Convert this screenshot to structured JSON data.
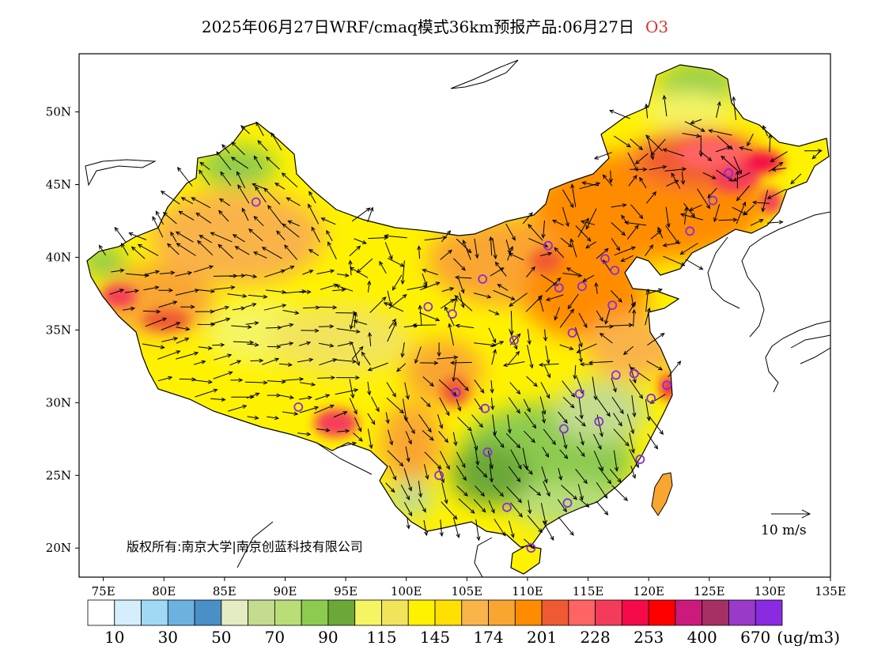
{
  "title": {
    "text": "2025年06月27日WRF/cmaq模式36km预报产品:06月27日",
    "pollutant": "O3"
  },
  "map": {
    "lon_range": [
      73,
      135
    ],
    "lat_range": [
      18,
      54
    ],
    "lon_ticks": [
      "75E",
      "80E",
      "85E",
      "90E",
      "95E",
      "100E",
      "105E",
      "110E",
      "115E",
      "120E",
      "125E",
      "130E",
      "135E"
    ],
    "lat_ticks": [
      "20N",
      "25N",
      "30N",
      "35N",
      "40N",
      "45N",
      "50N"
    ],
    "copyright": "版权所有:南京大学|南京创蓝科技有限公司",
    "wind_scale_label": "10 m/s"
  },
  "legend": {
    "colors": [
      "#ffffff",
      "#d4eefb",
      "#9fd9f6",
      "#6cb2e0",
      "#4a8fc6",
      "#e3ecc2",
      "#c3dc8e",
      "#b9de78",
      "#8ccb50",
      "#6ca838",
      "#f5f564",
      "#f2e45a",
      "#fff200",
      "#ffe000",
      "#f9b44a",
      "#f9a630",
      "#ff8c00",
      "#f05a32",
      "#ff6464",
      "#f43c5a",
      "#f50a4a",
      "#ff0000",
      "#cc1a7c",
      "#a63064",
      "#9a3acb",
      "#8a2be2"
    ],
    "labels": [
      "10",
      "30",
      "50",
      "70",
      "90",
      "115",
      "145",
      "174",
      "201",
      "228",
      "253",
      "400",
      "670"
    ],
    "unit": "(ug/m3)"
  },
  "sites": [
    {
      "lon": 87.6,
      "lat": 43.8
    },
    {
      "lon": 91.1,
      "lat": 29.7
    },
    {
      "lon": 101.8,
      "lat": 36.6
    },
    {
      "lon": 103.8,
      "lat": 36.1
    },
    {
      "lon": 106.3,
      "lat": 38.5
    },
    {
      "lon": 104.1,
      "lat": 30.7
    },
    {
      "lon": 106.5,
      "lat": 29.6
    },
    {
      "lon": 106.7,
      "lat": 26.6
    },
    {
      "lon": 102.7,
      "lat": 25.0
    },
    {
      "lon": 108.3,
      "lat": 22.8
    },
    {
      "lon": 110.3,
      "lat": 20.0
    },
    {
      "lon": 113.3,
      "lat": 23.1
    },
    {
      "lon": 113.0,
      "lat": 28.2
    },
    {
      "lon": 114.3,
      "lat": 30.6
    },
    {
      "lon": 115.9,
      "lat": 28.7
    },
    {
      "lon": 119.3,
      "lat": 26.1
    },
    {
      "lon": 120.2,
      "lat": 30.3
    },
    {
      "lon": 121.5,
      "lat": 31.2
    },
    {
      "lon": 118.8,
      "lat": 32.0
    },
    {
      "lon": 117.3,
      "lat": 31.9
    },
    {
      "lon": 113.7,
      "lat": 34.8
    },
    {
      "lon": 108.9,
      "lat": 34.3
    },
    {
      "lon": 112.6,
      "lat": 37.9
    },
    {
      "lon": 114.5,
      "lat": 38.0
    },
    {
      "lon": 117.0,
      "lat": 36.7
    },
    {
      "lon": 117.2,
      "lat": 39.1
    },
    {
      "lon": 116.4,
      "lat": 39.9
    },
    {
      "lon": 111.7,
      "lat": 40.8
    },
    {
      "lon": 123.4,
      "lat": 41.8
    },
    {
      "lon": 125.3,
      "lat": 43.9
    },
    {
      "lon": 126.6,
      "lat": 45.8
    }
  ]
}
